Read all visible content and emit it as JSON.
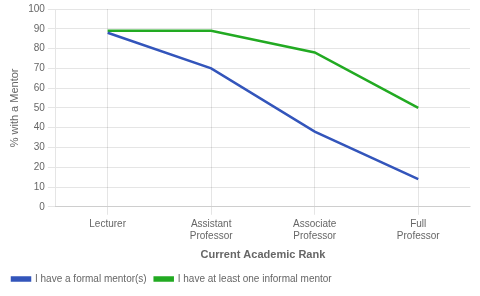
{
  "chart_data": {
    "type": "line",
    "xlabel": "Current Academic Rank",
    "ylabel": "% with a Mentor",
    "categories": [
      "Lecturer",
      "Assistant Professor",
      "Associate Professor",
      "Full Professor"
    ],
    "series": [
      {
        "name": "I have a formal mentor(s)",
        "color": "#3355bb",
        "values": [
          88,
          70,
          38,
          14
        ]
      },
      {
        "name": "I have at least one informal mentor",
        "color": "#22aa22",
        "values": [
          89,
          89,
          78,
          50
        ]
      }
    ],
    "ylim": [
      0,
      100
    ],
    "yticks": [
      0,
      10,
      20,
      30,
      40,
      50,
      60,
      70,
      80,
      90,
      100
    ],
    "grid": true,
    "legend": "lower left"
  }
}
